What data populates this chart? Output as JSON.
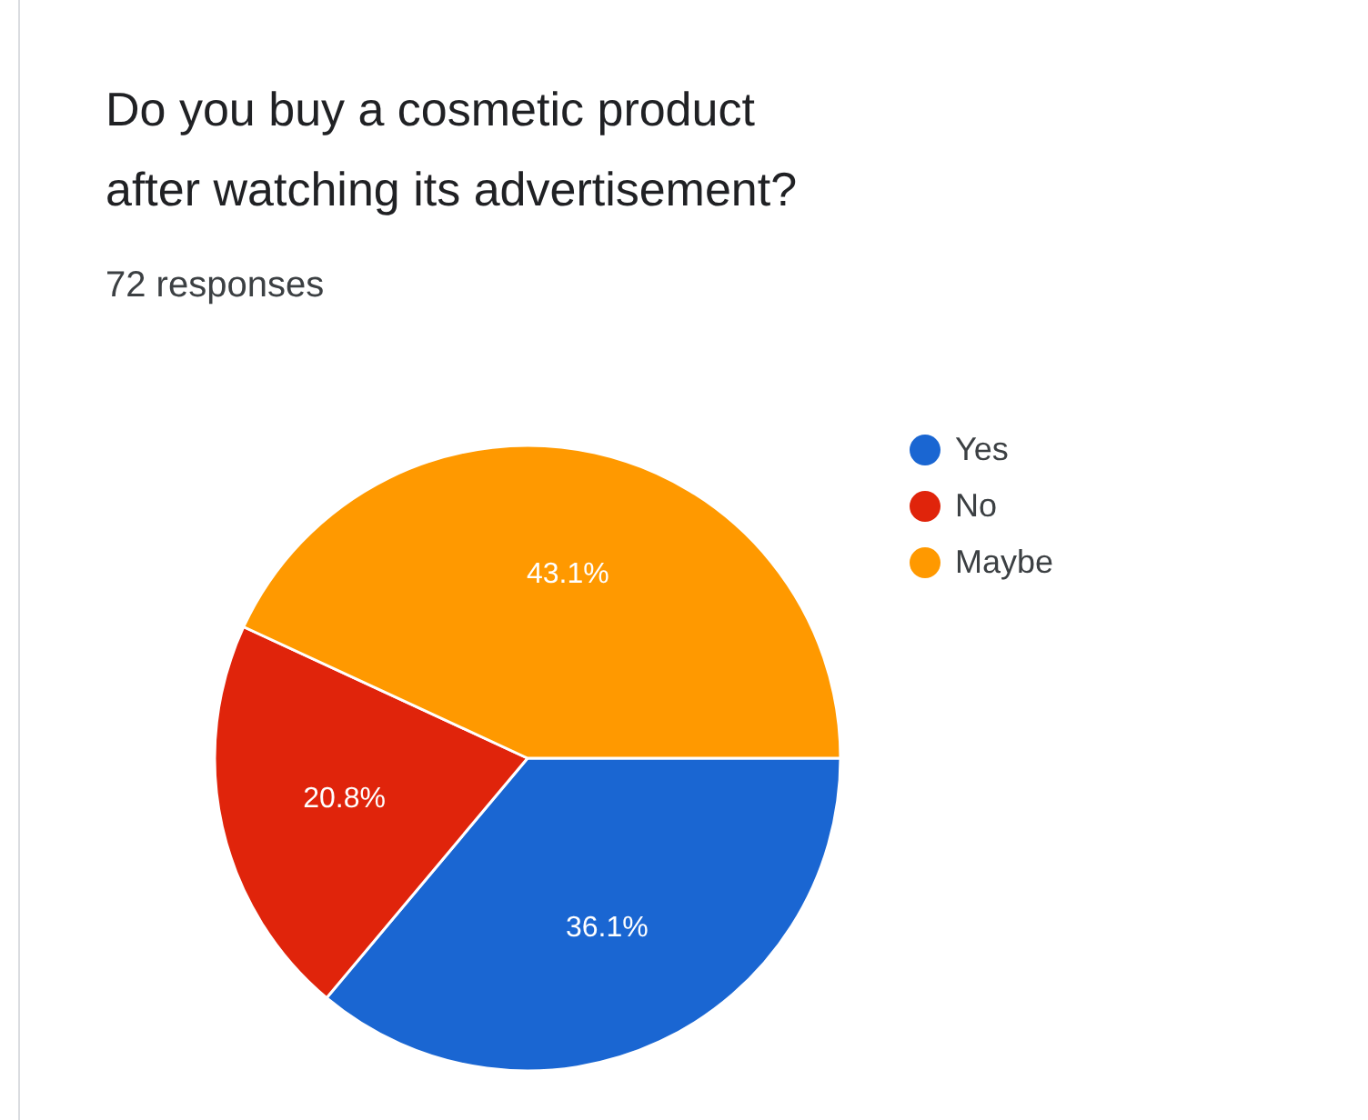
{
  "chart_data": {
    "type": "pie",
    "title": "Do you buy a cosmetic product\nafter watching its advertisement?",
    "subtitle": "72 responses",
    "categories": [
      "Yes",
      "No",
      "Maybe"
    ],
    "values": [
      36.1,
      20.8,
      43.1
    ],
    "colors": [
      "#1a66d2",
      "#e0240b",
      "#ff9900"
    ],
    "value_labels": [
      "36.1%",
      "20.8%",
      "43.1%"
    ],
    "legend": "top right"
  }
}
